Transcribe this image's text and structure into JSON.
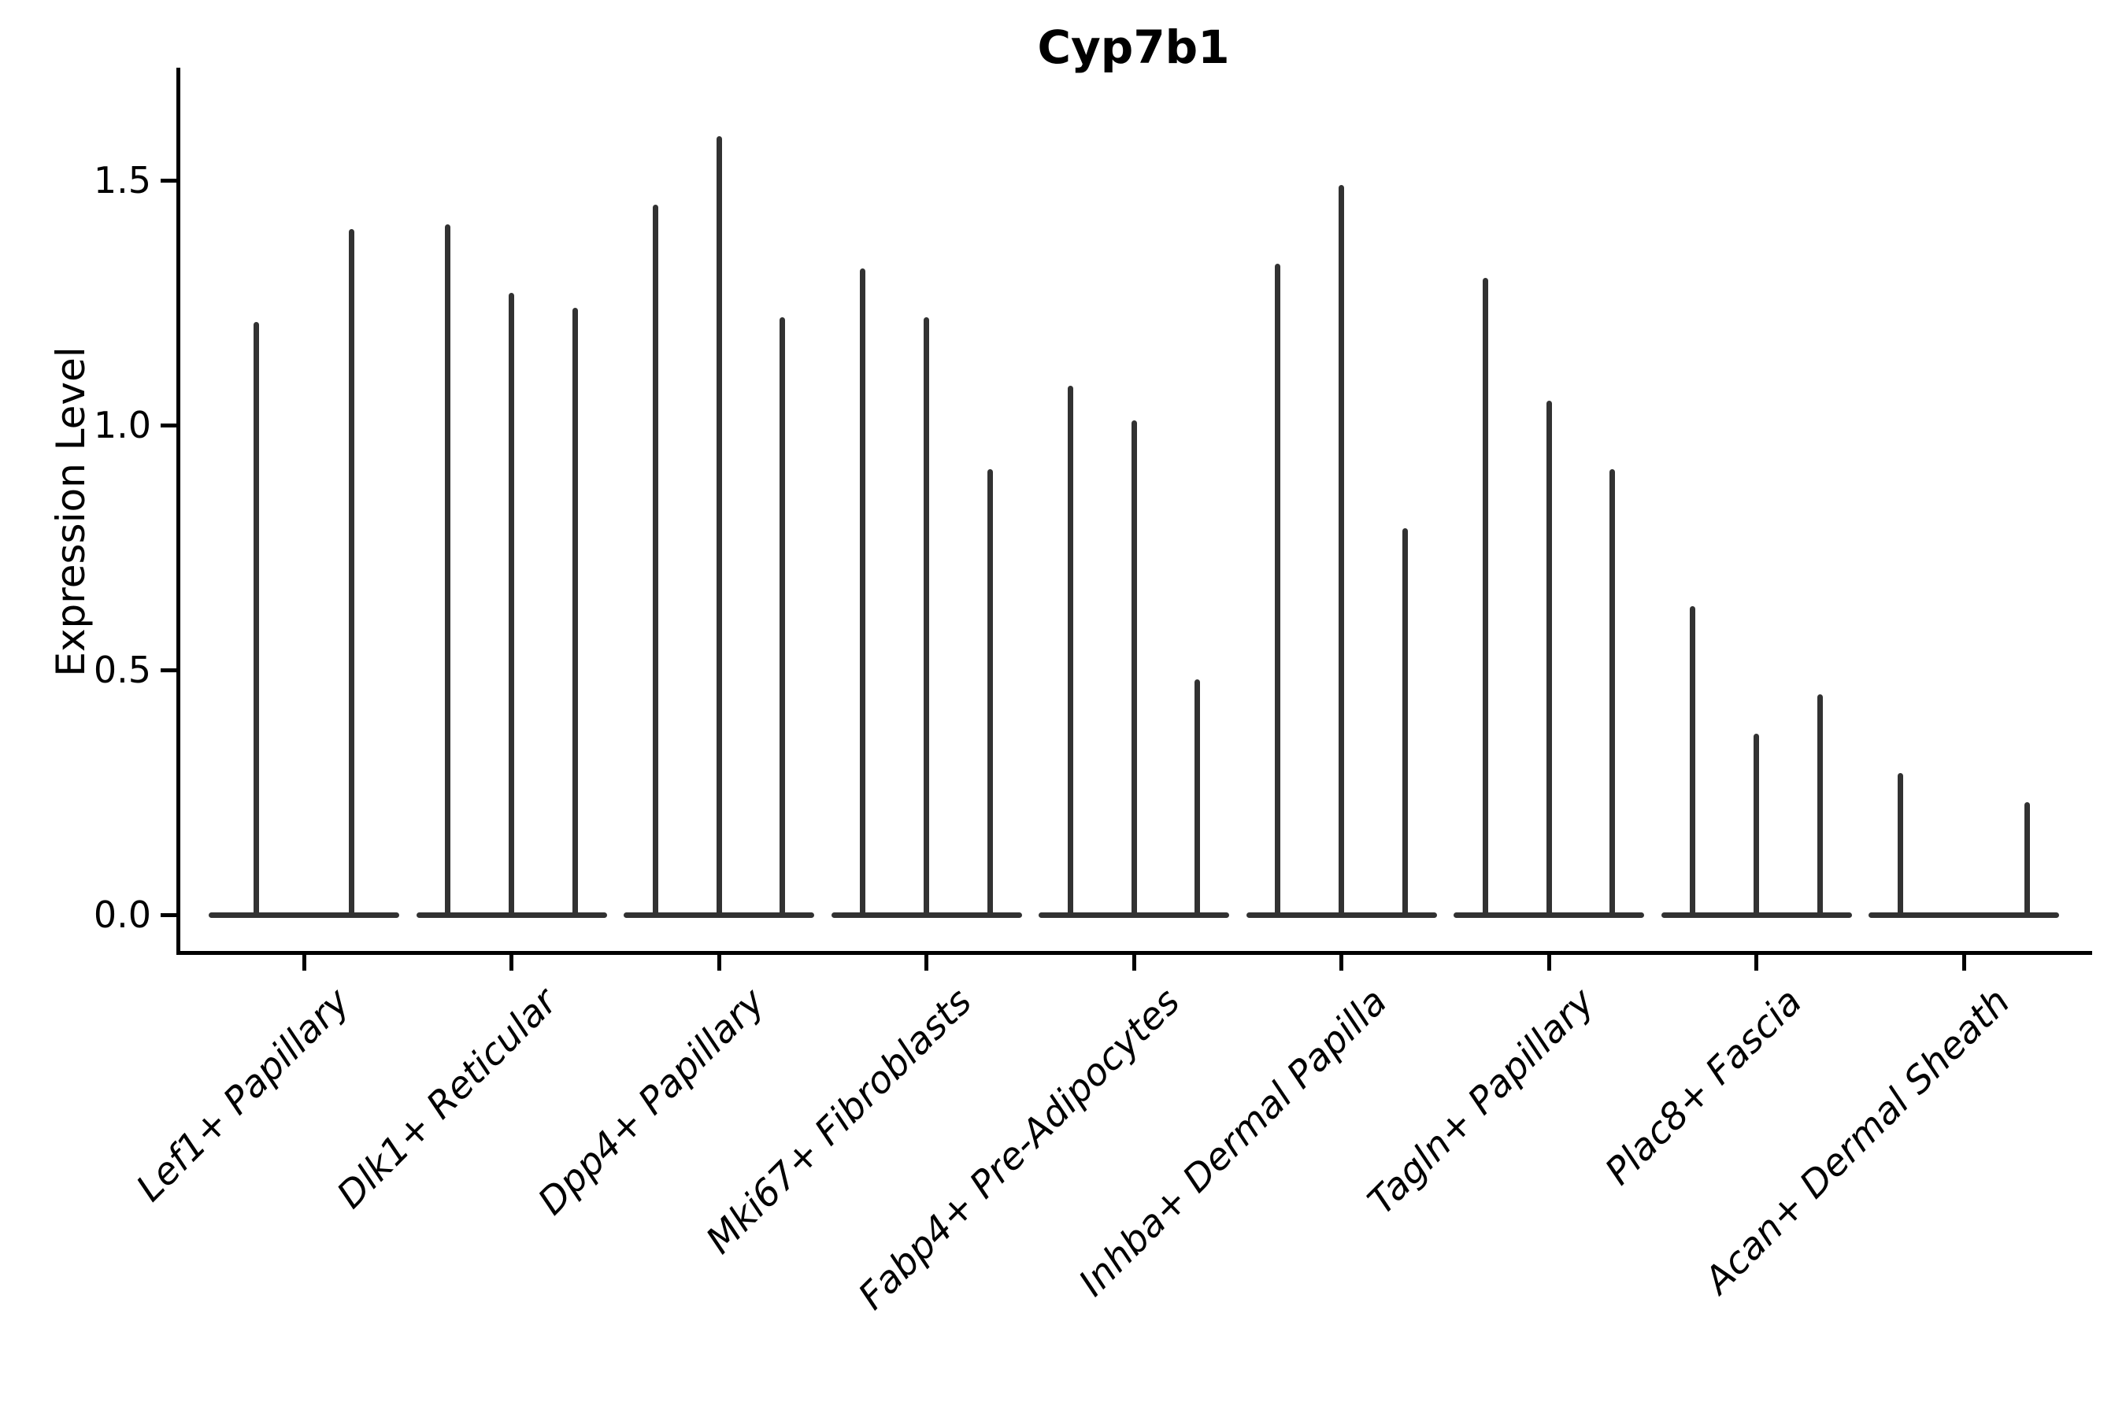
{
  "title": "Cyp7b1",
  "ylabel": "Expression Level",
  "chart_data": {
    "type": "violin",
    "title": "Cyp7b1",
    "xlabel": "",
    "ylabel": "Expression Level",
    "grid": false,
    "legend": null,
    "background": "#ffffff",
    "violin_color": "#323232",
    "y_ticks": [
      {
        "value": 0.0,
        "label": "0.0"
      },
      {
        "value": 0.5,
        "label": "0.5"
      },
      {
        "value": 1.0,
        "label": "1.0"
      },
      {
        "value": 1.5,
        "label": "1.5"
      }
    ],
    "ylim": [
      -0.08,
      1.73
    ],
    "description": "Violin plot of gene expression; each category holds multiple ultra-thin violins (wide flat base at 0 with a thin spike up to the max expression). A max of 0 means a flat violin with no spike.",
    "categories": [
      {
        "label": "Lef1+ Papillary",
        "violin_max_values": [
          1.21,
          1.4
        ]
      },
      {
        "label": "Dlk1+ Reticular",
        "violin_max_values": [
          1.41,
          1.27,
          1.24
        ]
      },
      {
        "label": "Dpp4+ Papillary",
        "violin_max_values": [
          1.45,
          1.59,
          1.22
        ]
      },
      {
        "label": "Mki67+ Fibroblasts",
        "violin_max_values": [
          1.32,
          1.22,
          0.91
        ]
      },
      {
        "label": "Fabp4+ Pre-Adipocytes",
        "violin_max_values": [
          1.08,
          1.01,
          0.48
        ]
      },
      {
        "label": "Inhba+ Dermal Papilla",
        "violin_max_values": [
          1.33,
          1.49,
          0.79
        ]
      },
      {
        "label": "Tagln+ Papillary",
        "violin_max_values": [
          1.3,
          1.05,
          0.91
        ]
      },
      {
        "label": "Plac8+ Fascia",
        "violin_max_values": [
          0.63,
          0.37,
          0.45
        ]
      },
      {
        "label": "Acan+ Dermal Sheath",
        "violin_max_values": [
          0.29,
          0.0,
          0.23
        ]
      }
    ]
  }
}
